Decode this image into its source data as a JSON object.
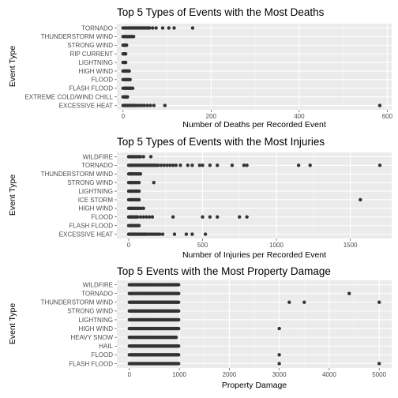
{
  "chart_data": [
    {
      "type": "scatter",
      "title": "Top 5 Types of Events with the Most Deaths",
      "xlabel": "Number of Deaths per Recorded Event",
      "ylabel": "Event Type",
      "xlim": [
        -14,
        610
      ],
      "xticks": [
        0,
        200,
        400,
        600
      ],
      "grid": true,
      "categories": [
        "EXCESSIVE HEAT",
        "EXTREME COLD/WIND CHILL",
        "FLASH FLOOD",
        "FLOOD",
        "HIGH WIND",
        "LIGHTNING",
        "RIP CURRENT",
        "STRONG WIND",
        "THUNDERSTORM WIND",
        "TORNADO"
      ],
      "points": {
        "EXCESSIVE HEAT": [
          0,
          3,
          6,
          10,
          14,
          18,
          22,
          26,
          30,
          36,
          42,
          48,
          55,
          62,
          70,
          95,
          583
        ],
        "EXTREME COLD/WIND CHILL": [
          0,
          2,
          4,
          6,
          8,
          10
        ],
        "FLASH FLOOD": [
          0,
          3,
          6,
          9,
          12,
          15,
          18,
          22
        ],
        "FLOOD": [
          0,
          3,
          6,
          9,
          12,
          16
        ],
        "HIGH WIND": [
          0,
          2,
          4,
          6,
          8,
          11,
          14
        ],
        "LIGHTNING": [
          0,
          2,
          4,
          6
        ],
        "RIP CURRENT": [
          0,
          2,
          4,
          6
        ],
        "STRONG WIND": [
          0,
          2,
          4,
          6,
          8
        ],
        "THUNDERSTORM WIND": [
          0,
          3,
          6,
          9,
          12,
          15,
          18,
          20,
          24
        ],
        "TORNADO": [
          0,
          4,
          8,
          12,
          16,
          20,
          24,
          28,
          32,
          36,
          40,
          44,
          48,
          52,
          56,
          60,
          67,
          75,
          90,
          104,
          116,
          158
        ]
      }
    },
    {
      "type": "scatter",
      "title": "Top 5 Types of Events with the Most Injuries",
      "xlabel": "Number of Injuries per Recorded Event",
      "ylabel": "Event Type",
      "xlim": [
        -80,
        1780
      ],
      "xticks": [
        0,
        500,
        1000,
        1500
      ],
      "grid": true,
      "categories": [
        "EXCESSIVE HEAT",
        "FLASH FLOOD",
        "FLOOD",
        "HIGH WIND",
        "ICE STORM",
        "LIGHTNING",
        "STRONG WIND",
        "THUNDERSTORM WIND",
        "TORNADO",
        "WILDFIRE"
      ],
      "points": {
        "EXCESSIVE HEAT": [
          0,
          10,
          20,
          30,
          40,
          50,
          60,
          70,
          80,
          90,
          100,
          110,
          120,
          135,
          150,
          165,
          180,
          195,
          210,
          230,
          310,
          390,
          430,
          519
        ],
        "FLASH FLOOD": [
          0,
          10,
          20,
          30,
          40,
          50,
          60,
          70
        ],
        "FLOOD": [
          0,
          10,
          20,
          30,
          40,
          50,
          60,
          80,
          100,
          120,
          140,
          160,
          300,
          500,
          550,
          600,
          750,
          800
        ],
        "HIGH WIND": [
          0,
          10,
          20,
          30,
          40,
          50,
          60,
          70,
          85,
          100
        ],
        "ICE STORM": [
          0,
          10,
          20,
          30,
          40,
          50,
          60,
          70,
          1568
        ],
        "LIGHTNING": [
          0,
          10,
          20,
          30,
          40,
          50,
          60,
          70
        ],
        "STRONG WIND": [
          0,
          10,
          20,
          30,
          40,
          50,
          60,
          70,
          170
        ],
        "THUNDERSTORM WIND": [
          0,
          10,
          20,
          30,
          40,
          50,
          60,
          70,
          80
        ],
        "TORNADO": [
          0,
          10,
          20,
          30,
          40,
          50,
          60,
          70,
          80,
          90,
          100,
          110,
          120,
          130,
          140,
          150,
          160,
          170,
          180,
          190,
          200,
          220,
          240,
          260,
          280,
          300,
          320,
          350,
          400,
          430,
          480,
          500,
          550,
          600,
          700,
          780,
          800,
          1150,
          1228,
          1700
        ],
        "WILDFIRE": [
          0,
          10,
          20,
          30,
          40,
          50,
          60,
          70,
          80,
          100,
          150
        ]
      }
    },
    {
      "type": "scatter",
      "title": "Top 5 Events with the Most Property Damage",
      "xlabel": "Property Damage",
      "ylabel": "Event Type",
      "xlim": [
        -250,
        5250
      ],
      "xticks": [
        0,
        1000,
        2000,
        3000,
        4000,
        5000
      ],
      "grid": true,
      "categories": [
        "FLASH FLOOD",
        "FLOOD",
        "HAIL",
        "HEAVY SNOW",
        "HIGH WIND",
        "LIGHTNING",
        "STRONG WIND",
        "THUNDERSTORM WIND",
        "TORNADO",
        "WILDFIRE"
      ],
      "dense_range": {
        "FLASH FLOOD": [
          0,
          1000
        ],
        "FLOOD": [
          0,
          1000
        ],
        "HAIL": [
          0,
          1000
        ],
        "HEAVY SNOW": [
          0,
          950
        ],
        "HIGH WIND": [
          0,
          1000
        ],
        "LIGHTNING": [
          0,
          1000
        ],
        "STRONG WIND": [
          0,
          1000
        ],
        "THUNDERSTORM WIND": [
          0,
          1000
        ],
        "TORNADO": [
          0,
          1000
        ],
        "WILDFIRE": [
          0,
          1000
        ]
      },
      "outliers": {
        "FLASH FLOOD": [
          3000,
          5000
        ],
        "FLOOD": [
          3000
        ],
        "HAIL": [],
        "HEAVY SNOW": [],
        "HIGH WIND": [
          3000
        ],
        "LIGHTNING": [],
        "STRONG WIND": [],
        "THUNDERSTORM WIND": [
          3200,
          3500,
          5000
        ],
        "TORNADO": [
          4400
        ],
        "WILDFIRE": []
      }
    }
  ]
}
